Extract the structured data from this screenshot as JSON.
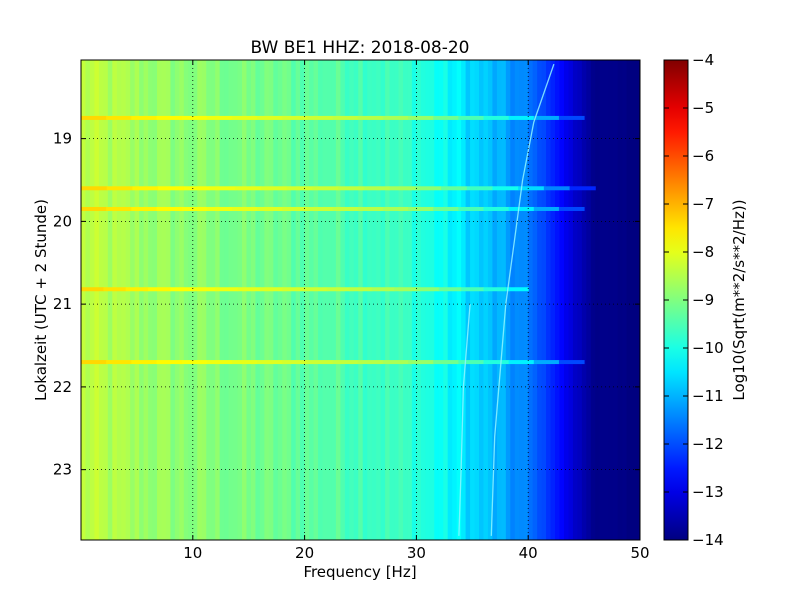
{
  "chart_data": [
    {
      "type": "heatmap",
      "title": "BW BE1 HHZ: 2018-08-20",
      "xlabel": "Frequency [Hz]",
      "ylabel": "Lokalzeit (UTC + 2 Stunde)",
      "xlim": [
        0,
        50
      ],
      "ylim": [
        18.05,
        23.85
      ],
      "y_inverted": true,
      "x_ticks": [
        10,
        20,
        30,
        40,
        50
      ],
      "y_ticks": [
        19,
        20,
        21,
        22,
        23
      ],
      "grid": true,
      "colormap": "jet",
      "value_range": [
        -14,
        -4
      ],
      "colorbar_label": "Log10(Sqrt(m**2/s**2/Hz))",
      "colorbar_ticks": [
        -4,
        -5,
        -6,
        -7,
        -8,
        -9,
        -10,
        -11,
        -12,
        -13,
        -14
      ],
      "spectral_profile": [
        {
          "f": 0,
          "v": -8.4
        },
        {
          "f": 5,
          "v": -8.7
        },
        {
          "f": 10,
          "v": -8.9
        },
        {
          "f": 15,
          "v": -9.1
        },
        {
          "f": 20,
          "v": -9.3
        },
        {
          "f": 25,
          "v": -9.5
        },
        {
          "f": 30,
          "v": -9.8
        },
        {
          "f": 33,
          "v": -10.3
        },
        {
          "f": 36,
          "v": -10.8
        },
        {
          "f": 38,
          "v": -11.2
        },
        {
          "f": 40,
          "v": -11.6
        },
        {
          "f": 42,
          "v": -12.3
        },
        {
          "f": 44,
          "v": -13.2
        },
        {
          "f": 46,
          "v": -13.9
        },
        {
          "f": 50,
          "v": -14
        }
      ],
      "bright_bands": [
        {
          "time": 18.75,
          "max_freq": 45
        },
        {
          "time": 19.6,
          "max_freq": 46
        },
        {
          "time": 19.85,
          "max_freq": 45
        },
        {
          "time": 20.82,
          "max_freq": 40
        },
        {
          "time": 21.7,
          "max_freq": 45
        }
      ],
      "drift_lines": [
        {
          "name": "line-1",
          "points": [
            {
              "t": 18.1,
              "f": 42.3
            },
            {
              "t": 18.8,
              "f": 40.5
            },
            {
              "t": 19.5,
              "f": 39.5
            },
            {
              "t": 20.2,
              "f": 38.8
            },
            {
              "t": 21.0,
              "f": 38.0
            },
            {
              "t": 21.8,
              "f": 37.5
            },
            {
              "t": 22.6,
              "f": 37.0
            },
            {
              "t": 23.8,
              "f": 36.7
            }
          ]
        },
        {
          "name": "line-2",
          "points": [
            {
              "t": 21.0,
              "f": 34.8
            },
            {
              "t": 22.0,
              "f": 34.2
            },
            {
              "t": 23.0,
              "f": 34.0
            },
            {
              "t": 23.8,
              "f": 33.8
            }
          ]
        }
      ]
    }
  ]
}
